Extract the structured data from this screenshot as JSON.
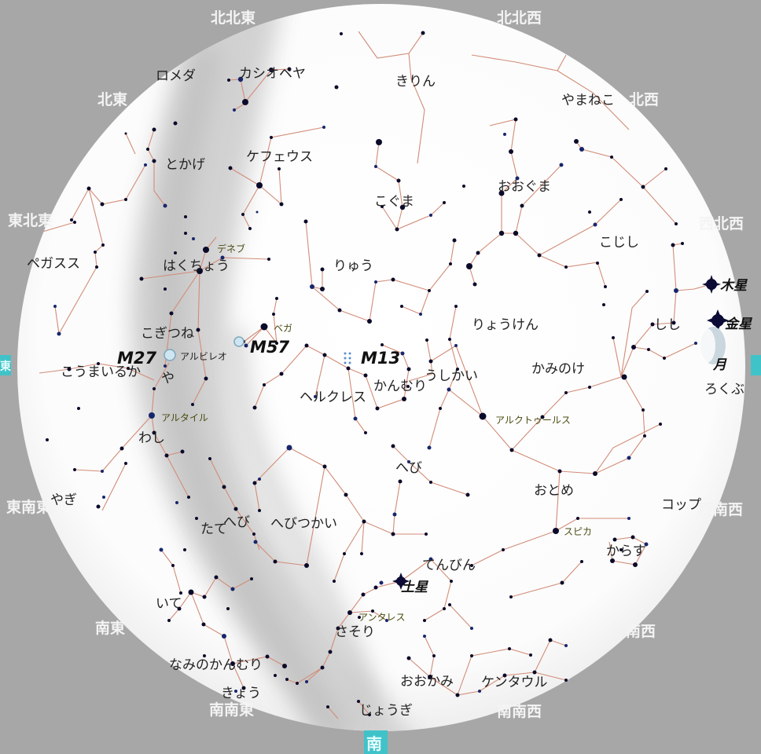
{
  "directions": [
    {
      "id": "nne",
      "label": "北北東"
    },
    {
      "id": "nnw",
      "label": "北北西"
    },
    {
      "id": "ne",
      "label": "北東"
    },
    {
      "id": "nw",
      "label": "北西"
    },
    {
      "id": "ene",
      "label": "東北東"
    },
    {
      "id": "wnw",
      "label": "西北西"
    },
    {
      "id": "ese",
      "label": "東南東"
    },
    {
      "id": "wsw",
      "label": "西南西"
    },
    {
      "id": "se",
      "label": "南東"
    },
    {
      "id": "sw",
      "label": "南西"
    },
    {
      "id": "sse",
      "label": "南南東"
    },
    {
      "id": "ssw",
      "label": "南南西"
    },
    {
      "id": "s",
      "label": "南"
    },
    {
      "id": "e",
      "label": "東"
    }
  ],
  "constellations": [
    {
      "id": "andromeda",
      "label": "ロメダ"
    },
    {
      "id": "cassiopeia",
      "label": "カシオペヤ"
    },
    {
      "id": "camelopardalis",
      "label": "きりん"
    },
    {
      "id": "lynx",
      "label": "やまねこ"
    },
    {
      "id": "lacerta",
      "label": "とかげ"
    },
    {
      "id": "cepheus",
      "label": "ケフェウス"
    },
    {
      "id": "ursa-minor",
      "label": "こぐま"
    },
    {
      "id": "ursa-major",
      "label": "おおぐま"
    },
    {
      "id": "leo-minor",
      "label": "こじし"
    },
    {
      "id": "pegasus",
      "label": "ペガスス"
    },
    {
      "id": "cygnus",
      "label": "はくちょう"
    },
    {
      "id": "draco",
      "label": "りゅう"
    },
    {
      "id": "canes-venatici",
      "label": "りょうけん"
    },
    {
      "id": "leo",
      "label": "しし"
    },
    {
      "id": "vulpecula",
      "label": "こぎつね"
    },
    {
      "id": "equuleus",
      "label": "こうまいるか"
    },
    {
      "id": "sagitta",
      "label": "や"
    },
    {
      "id": "hercules",
      "label": "ヘルクレス"
    },
    {
      "id": "corona-borealis",
      "label": "かんむり"
    },
    {
      "id": "bootes",
      "label": "うしかい"
    },
    {
      "id": "coma",
      "label": "かみのけ"
    },
    {
      "id": "sextans",
      "label": "ろくぶ"
    },
    {
      "id": "aquila",
      "label": "わし"
    },
    {
      "id": "serpens-caput",
      "label": "へび"
    },
    {
      "id": "virgo",
      "label": "おとめ"
    },
    {
      "id": "crater",
      "label": "コップ"
    },
    {
      "id": "scutum",
      "label": "たて"
    },
    {
      "id": "serpens-cauda",
      "label": "へび"
    },
    {
      "id": "ophiuchus",
      "label": "へびつかい"
    },
    {
      "id": "corvus",
      "label": "からす"
    },
    {
      "id": "libra",
      "label": "てんびん"
    },
    {
      "id": "capricornus",
      "label": "やぎ"
    },
    {
      "id": "sagittarius",
      "label": "いて"
    },
    {
      "id": "scorpius",
      "label": "さそり"
    },
    {
      "id": "corona-australis",
      "label": "なみのかんむり"
    },
    {
      "id": "lupus",
      "label": "おおかみ"
    },
    {
      "id": "centaurus",
      "label": "ケンタウル"
    },
    {
      "id": "telescopium",
      "label": "きょう"
    },
    {
      "id": "norma",
      "label": "じょうぎ"
    }
  ],
  "stars": [
    {
      "id": "deneb",
      "label": "デネブ"
    },
    {
      "id": "vega",
      "label": "ベガ"
    },
    {
      "id": "albireo",
      "label": "アルビレオ"
    },
    {
      "id": "altair",
      "label": "アルタイル"
    },
    {
      "id": "arcturus",
      "label": "アルクトゥールス"
    },
    {
      "id": "spica",
      "label": "スピカ"
    },
    {
      "id": "antares",
      "label": "アンタレス"
    }
  ],
  "deep_sky": [
    {
      "id": "m27",
      "label": "M27"
    },
    {
      "id": "m57",
      "label": "M57"
    },
    {
      "id": "m13",
      "label": "M13"
    }
  ],
  "planets": [
    {
      "id": "jupiter",
      "label": "木星"
    },
    {
      "id": "venus",
      "label": "金星"
    },
    {
      "id": "moon",
      "label": "月"
    },
    {
      "id": "saturn",
      "label": "土星"
    }
  ],
  "colors": {
    "background": "#a7a7a7",
    "sky": "#ffffff",
    "milky_way": "#cfcfcf",
    "constellation_line": "#d28c78",
    "star": "#0a0a2a",
    "cardinal_marker": "#3fc3c9"
  }
}
